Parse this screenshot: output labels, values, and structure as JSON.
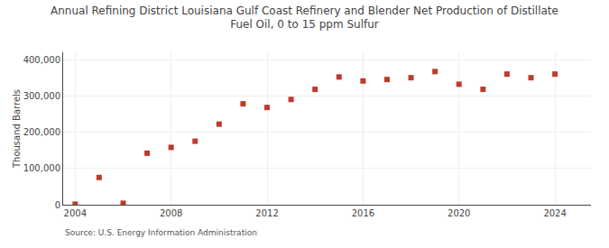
{
  "chart_data": {
    "type": "scatter",
    "title": "Annual Refining District Louisiana Gulf Coast Refinery and Blender Net Production of Distillate\nFuel Oil, 0 to 15 ppm Sulfur",
    "ylabel": "Thousand Barrels",
    "source": "Source: U.S. Energy Information Administration",
    "x": [
      2004,
      2005,
      2006,
      2007,
      2008,
      2009,
      2010,
      2011,
      2012,
      2013,
      2014,
      2015,
      2016,
      2017,
      2018,
      2019,
      2020,
      2021,
      2022,
      2023,
      2024
    ],
    "values": [
      1500,
      75000,
      4000,
      142000,
      158000,
      175000,
      222000,
      278000,
      268000,
      290000,
      318000,
      352000,
      341000,
      345000,
      350000,
      367000,
      332000,
      318000,
      360000,
      350000,
      360000
    ],
    "color": "#c0392b",
    "marker": "square",
    "xlim": [
      2003.5,
      2025.5
    ],
    "xticks": [
      2004,
      2008,
      2012,
      2016,
      2020,
      2024
    ],
    "ylim": [
      0,
      420000
    ],
    "yticks": [
      0,
      {
        "value": 100000,
        "label": "100,000"
      },
      {
        "value": 200000,
        "label": "200,000"
      },
      {
        "value": 300000,
        "label": "300,000"
      },
      {
        "value": 400000,
        "label": "400,000"
      }
    ],
    "grid": true
  }
}
